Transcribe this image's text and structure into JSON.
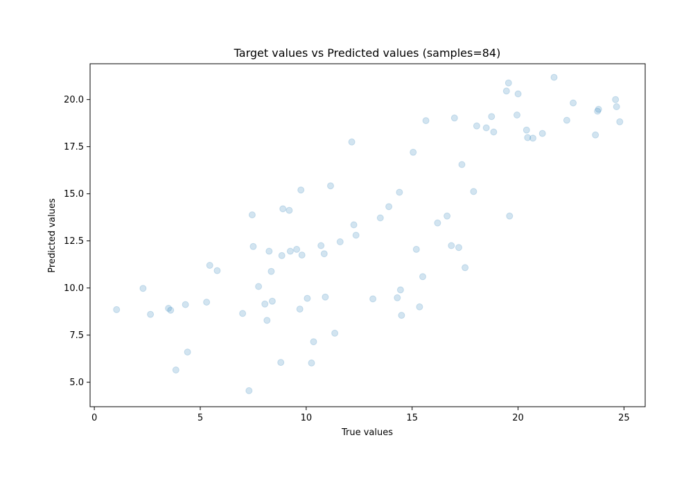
{
  "chart_data": {
    "type": "scatter",
    "title": "Target values vs Predicted values (samples=84)",
    "xlabel": "True values",
    "ylabel": "Predicted values",
    "xlim": [
      -0.2,
      26.0
    ],
    "ylim": [
      3.7,
      21.9
    ],
    "xticks": [
      "0",
      "5",
      "10",
      "15",
      "20",
      "25"
    ],
    "xtick_values": [
      0,
      5,
      10,
      15,
      20,
      25
    ],
    "yticks": [
      "5.0",
      "7.5",
      "10.0",
      "12.5",
      "15.0",
      "17.5",
      "20.0"
    ],
    "ytick_values": [
      5.0,
      7.5,
      10.0,
      12.5,
      15.0,
      17.5,
      20.0
    ],
    "grid": false,
    "marker_color": "#1f77b4",
    "marker_opacity": 0.2,
    "points": [
      [
        1.05,
        8.85
      ],
      [
        2.3,
        9.98
      ],
      [
        2.65,
        8.6
      ],
      [
        3.5,
        8.92
      ],
      [
        3.6,
        8.82
      ],
      [
        3.85,
        5.65
      ],
      [
        4.3,
        9.12
      ],
      [
        4.4,
        6.6
      ],
      [
        5.3,
        9.25
      ],
      [
        5.45,
        11.2
      ],
      [
        5.8,
        10.92
      ],
      [
        7.0,
        8.65
      ],
      [
        7.3,
        4.55
      ],
      [
        7.45,
        13.88
      ],
      [
        7.5,
        12.2
      ],
      [
        7.75,
        10.08
      ],
      [
        8.05,
        9.15
      ],
      [
        8.15,
        8.28
      ],
      [
        8.25,
        11.95
      ],
      [
        8.35,
        10.88
      ],
      [
        8.4,
        9.3
      ],
      [
        8.8,
        6.05
      ],
      [
        8.85,
        11.72
      ],
      [
        8.9,
        14.2
      ],
      [
        9.2,
        14.12
      ],
      [
        9.25,
        11.95
      ],
      [
        9.55,
        12.05
      ],
      [
        9.7,
        8.88
      ],
      [
        9.75,
        15.2
      ],
      [
        9.8,
        11.75
      ],
      [
        10.05,
        9.45
      ],
      [
        10.25,
        6.02
      ],
      [
        10.35,
        7.15
      ],
      [
        10.7,
        12.25
      ],
      [
        10.85,
        11.82
      ],
      [
        10.9,
        9.52
      ],
      [
        11.15,
        15.42
      ],
      [
        11.35,
        7.6
      ],
      [
        11.6,
        12.45
      ],
      [
        12.15,
        17.75
      ],
      [
        12.25,
        13.35
      ],
      [
        12.35,
        12.8
      ],
      [
        13.15,
        9.42
      ],
      [
        13.5,
        13.72
      ],
      [
        13.9,
        14.32
      ],
      [
        14.3,
        9.48
      ],
      [
        14.4,
        15.08
      ],
      [
        14.45,
        9.9
      ],
      [
        14.5,
        8.55
      ],
      [
        15.05,
        17.2
      ],
      [
        15.2,
        12.05
      ],
      [
        15.35,
        9.0
      ],
      [
        15.5,
        10.6
      ],
      [
        15.65,
        18.88
      ],
      [
        16.2,
        13.45
      ],
      [
        16.65,
        13.82
      ],
      [
        16.85,
        12.25
      ],
      [
        17.0,
        19.02
      ],
      [
        17.2,
        12.15
      ],
      [
        17.35,
        16.55
      ],
      [
        17.5,
        11.08
      ],
      [
        17.9,
        15.12
      ],
      [
        18.05,
        18.6
      ],
      [
        18.5,
        18.5
      ],
      [
        18.75,
        19.1
      ],
      [
        18.85,
        18.28
      ],
      [
        19.45,
        20.45
      ],
      [
        19.55,
        20.88
      ],
      [
        19.6,
        13.82
      ],
      [
        19.95,
        19.18
      ],
      [
        20.0,
        20.3
      ],
      [
        20.4,
        18.38
      ],
      [
        20.45,
        17.98
      ],
      [
        20.7,
        17.95
      ],
      [
        21.15,
        18.2
      ],
      [
        21.7,
        21.18
      ],
      [
        22.3,
        18.9
      ],
      [
        22.6,
        19.82
      ],
      [
        23.65,
        18.12
      ],
      [
        23.75,
        19.38
      ],
      [
        23.8,
        19.48
      ],
      [
        24.6,
        20.0
      ],
      [
        24.65,
        19.62
      ],
      [
        24.8,
        18.82
      ]
    ]
  }
}
